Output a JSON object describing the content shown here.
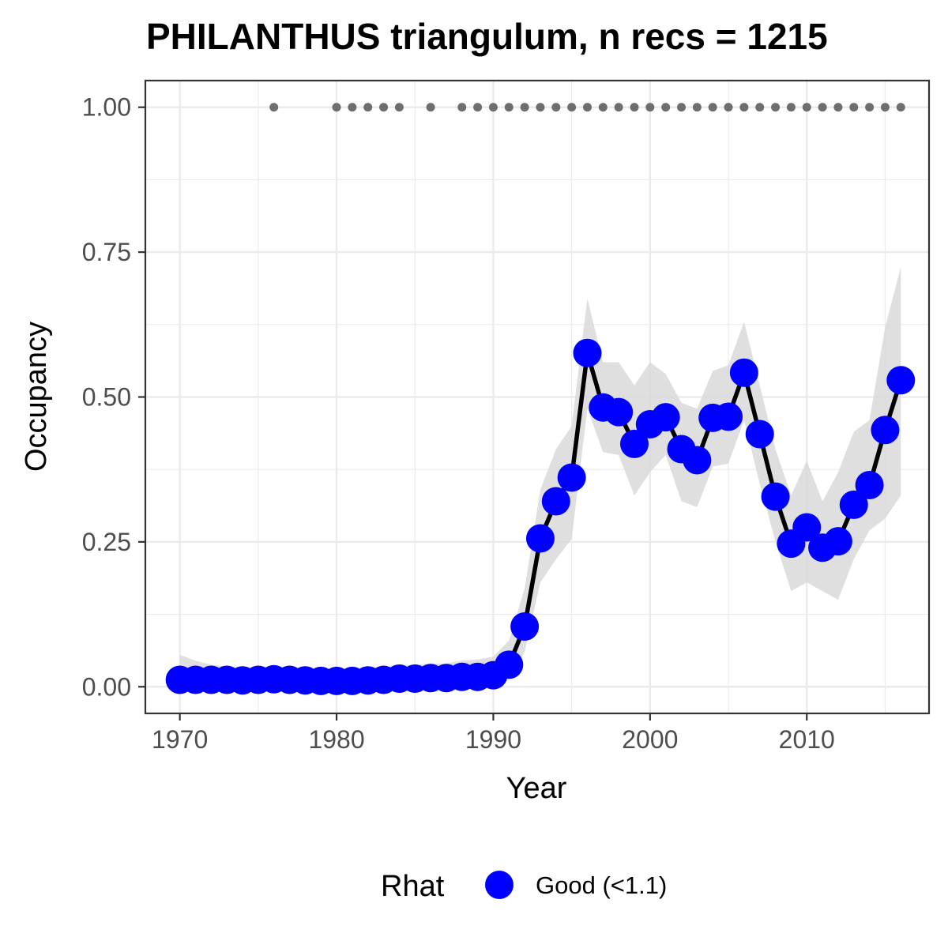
{
  "chart_data": {
    "type": "line",
    "title": "PHILANTHUS triangulum, n recs = 1215",
    "xlabel": "Year",
    "ylabel": "Occupancy",
    "xlim": [
      1967.8,
      2017.8
    ],
    "ylim": [
      -0.046,
      1.046
    ],
    "x_ticks": [
      1970,
      1980,
      1990,
      2000,
      2010
    ],
    "x_tick_labels": [
      "1970",
      "1980",
      "1990",
      "2000",
      "2010"
    ],
    "y_ticks": [
      0,
      0.25,
      0.5,
      0.75,
      1.0
    ],
    "y_tick_labels": [
      "0.00",
      "0.25",
      "0.50",
      "0.75",
      "1.00"
    ],
    "grid": true,
    "legend": {
      "position": "bottom",
      "title": "Rhat",
      "entries": [
        {
          "label": "Good (<1.1)",
          "color": "#0000ff"
        }
      ]
    },
    "colors": {
      "points": "#0000ff",
      "line": "#000000",
      "ribbon": "#d9d9d9",
      "record_dots": "#6e6e6e",
      "grid": "#ebebeb",
      "panel_border": "#333333"
    },
    "x": [
      1970,
      1971,
      1972,
      1973,
      1974,
      1975,
      1976,
      1977,
      1978,
      1979,
      1980,
      1981,
      1982,
      1983,
      1984,
      1985,
      1986,
      1987,
      1988,
      1989,
      1990,
      1991,
      1992,
      1993,
      1994,
      1995,
      1996,
      1997,
      1998,
      1999,
      2000,
      2001,
      2002,
      2003,
      2004,
      2005,
      2006,
      2007,
      2008,
      2009,
      2010,
      2011,
      2012,
      2013,
      2014,
      2015,
      2016
    ],
    "series": [
      {
        "values": [
          0.012,
          0.012,
          0.012,
          0.012,
          0.011,
          0.012,
          0.013,
          0.012,
          0.011,
          0.01,
          0.01,
          0.01,
          0.011,
          0.012,
          0.014,
          0.014,
          0.015,
          0.015,
          0.017,
          0.017,
          0.02,
          0.038,
          0.104,
          0.256,
          0.32,
          0.361,
          0.576,
          0.482,
          0.474,
          0.419,
          0.453,
          0.465,
          0.41,
          0.391,
          0.464,
          0.466,
          0.542,
          0.436,
          0.328,
          0.247,
          0.275,
          0.24,
          0.251,
          0.314,
          0.348,
          0.443,
          0.529
        ],
        "lower": [
          0.0,
          0.0,
          0.0,
          0.0,
          0.0,
          0.0,
          0.0,
          0.0,
          0.0,
          0.0,
          0.0,
          0.0,
          0.0,
          0.0,
          0.0,
          0.0,
          0.0,
          0.0,
          0.0,
          0.0,
          0.005,
          0.015,
          0.06,
          0.18,
          0.22,
          0.255,
          0.48,
          0.405,
          0.4,
          0.33,
          0.37,
          0.4,
          0.32,
          0.31,
          0.38,
          0.385,
          0.46,
          0.35,
          0.25,
          0.165,
          0.18,
          0.165,
          0.15,
          0.22,
          0.27,
          0.29,
          0.33
        ],
        "upper": [
          0.055,
          0.045,
          0.038,
          0.035,
          0.033,
          0.034,
          0.036,
          0.034,
          0.032,
          0.03,
          0.029,
          0.03,
          0.032,
          0.034,
          0.037,
          0.038,
          0.04,
          0.04,
          0.045,
          0.047,
          0.052,
          0.08,
          0.17,
          0.34,
          0.41,
          0.45,
          0.67,
          0.56,
          0.56,
          0.52,
          0.56,
          0.54,
          0.49,
          0.48,
          0.545,
          0.555,
          0.63,
          0.52,
          0.41,
          0.33,
          0.39,
          0.32,
          0.37,
          0.44,
          0.46,
          0.62,
          0.725
        ]
      }
    ],
    "record_years": [
      1976,
      1980,
      1981,
      1982,
      1983,
      1984,
      1986,
      1988,
      1989,
      1990,
      1991,
      1992,
      1993,
      1994,
      1995,
      1996,
      1997,
      1998,
      1999,
      2000,
      2001,
      2002,
      2003,
      2004,
      2005,
      2006,
      2007,
      2008,
      2009,
      2010,
      2011,
      2012,
      2013,
      2014,
      2015,
      2016
    ],
    "record_value": 1.0
  }
}
